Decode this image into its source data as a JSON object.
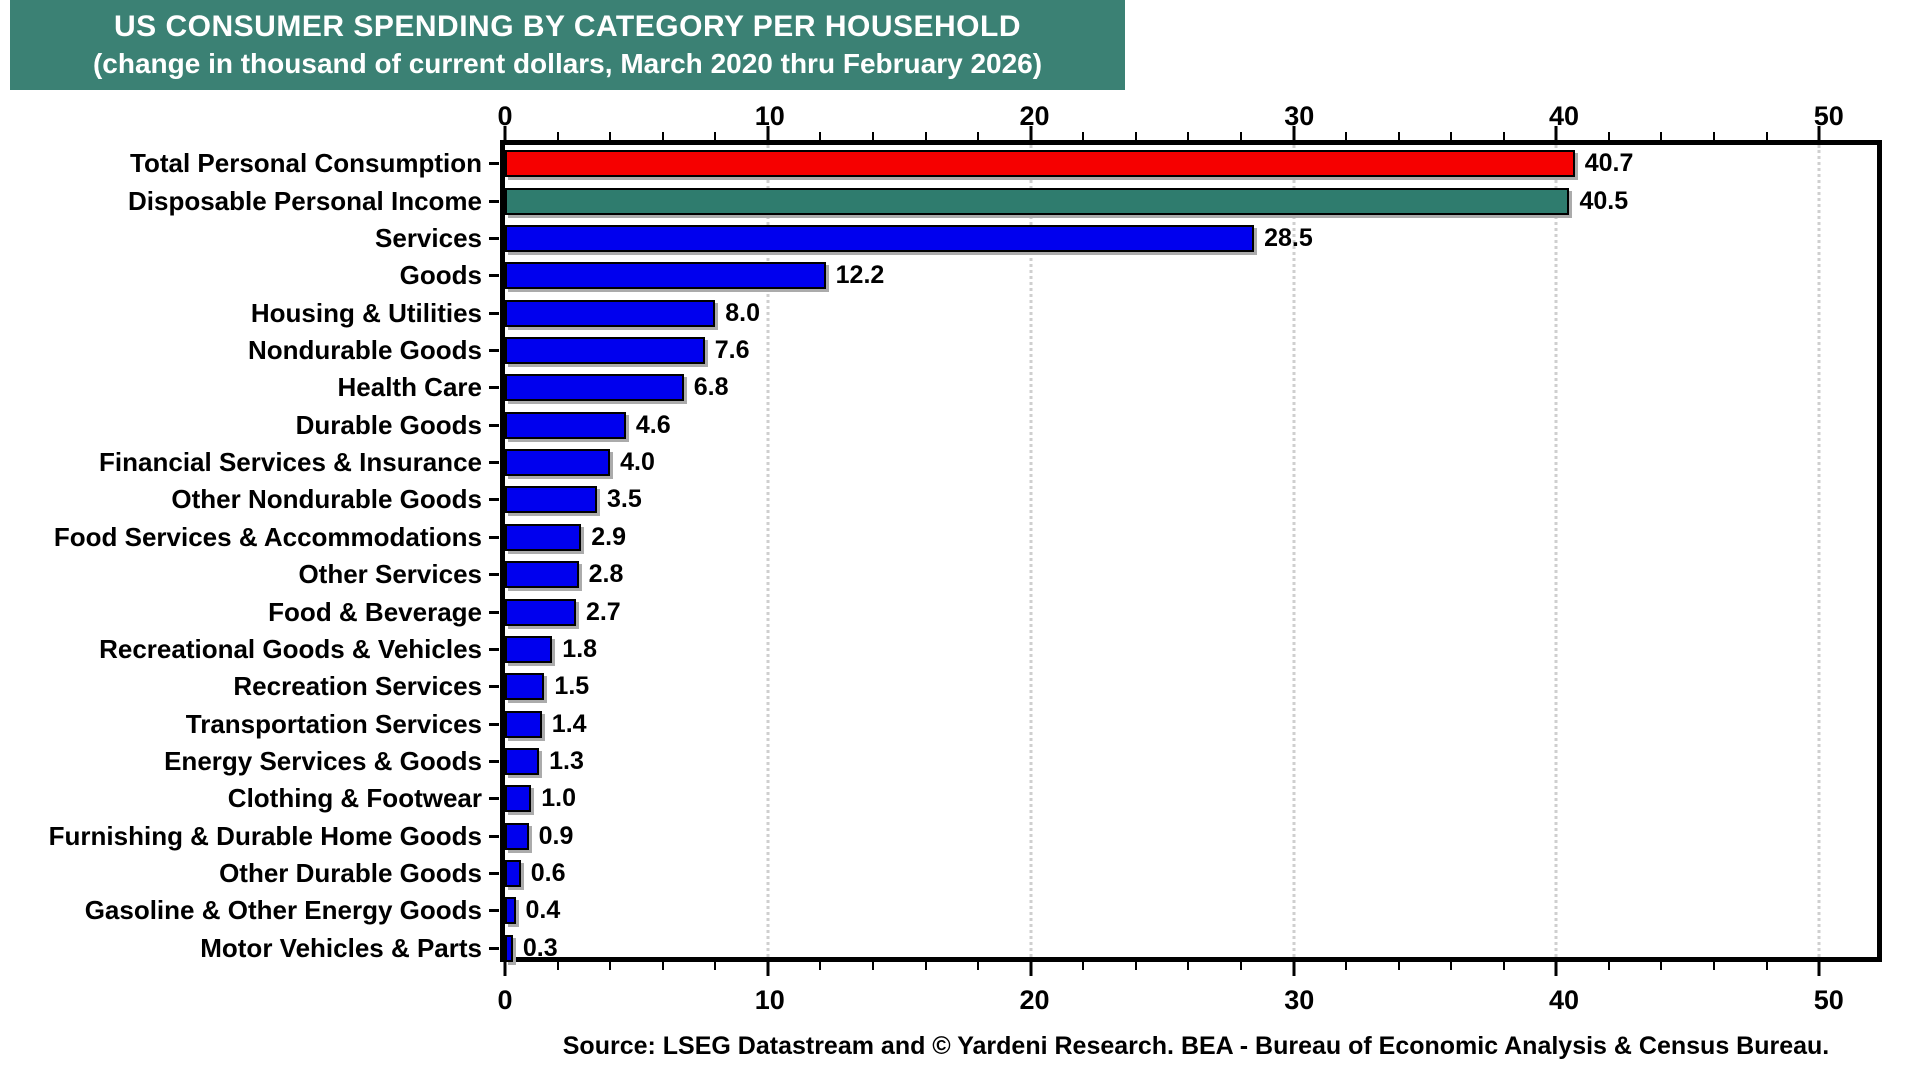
{
  "title": {
    "line1": "US CONSUMER SPENDING BY CATEGORY PER HOUSEHOLD",
    "line2": "(change in thousand of current dollars, March 2020 thru February 2026)"
  },
  "source_note": "Source: LSEG Datastream and © Yardeni Research. BEA - Bureau of Economic Analysis & Census Bureau.",
  "colors": {
    "title_bg": "#3B8174",
    "bar_red": "#F60000",
    "bar_teal": "#2F7C6E",
    "bar_blue": "#0000EE",
    "gridline": "#cfcfcf",
    "frame": "#000000",
    "title_text": "#ffffff"
  },
  "chart_data": {
    "type": "bar",
    "orientation": "horizontal",
    "title": "US CONSUMER SPENDING BY CATEGORY PER HOUSEHOLD",
    "subtitle": "(change in thousand of current dollars, March 2020 thru February 2026)",
    "xlabel": "",
    "ylabel": "",
    "categories": [
      "Total Personal Consumption",
      "Disposable Personal Income",
      "Services",
      "Goods",
      "Housing & Utilities",
      "Nondurable Goods",
      "Health Care",
      "Durable Goods",
      "Financial Services & Insurance",
      "Other Nondurable Goods",
      "Food Services & Accommodations",
      "Other Services",
      "Food & Beverage",
      "Recreational Goods & Vehicles",
      "Recreation Services",
      "Transportation Services",
      "Energy Services & Goods",
      "Clothing & Footwear",
      "Furnishing & Durable Home Goods",
      "Other Durable Goods",
      "Gasoline & Other Energy Goods",
      "Motor Vehicles & Parts"
    ],
    "values": [
      40.7,
      40.5,
      28.5,
      12.2,
      8.0,
      7.6,
      6.8,
      4.6,
      4.0,
      3.5,
      2.9,
      2.8,
      2.7,
      1.8,
      1.5,
      1.4,
      1.3,
      1.0,
      0.9,
      0.6,
      0.4,
      0.3
    ],
    "bar_colors": [
      "#F60000",
      "#2F7C6E",
      "#0000EE",
      "#0000EE",
      "#0000EE",
      "#0000EE",
      "#0000EE",
      "#0000EE",
      "#0000EE",
      "#0000EE",
      "#0000EE",
      "#0000EE",
      "#0000EE",
      "#0000EE",
      "#0000EE",
      "#0000EE",
      "#0000EE",
      "#0000EE",
      "#0000EE",
      "#0000EE",
      "#0000EE",
      "#0000EE"
    ],
    "value_labels": [
      "40.7",
      "40.5",
      "28.5",
      "12.2",
      "8.0",
      "7.6",
      "6.8",
      "4.6",
      "4.0",
      "3.5",
      "2.9",
      "2.8",
      "2.7",
      "1.8",
      "1.5",
      "1.4",
      "1.3",
      "1.0",
      "0.9",
      "0.6",
      "0.4",
      "0.3"
    ],
    "xlim": [
      0,
      52.2
    ],
    "xticks": [
      0,
      10,
      20,
      30,
      40,
      50
    ],
    "xtick_labels": [
      "0",
      "10",
      "20",
      "30",
      "40",
      "50"
    ],
    "minor_tick_step": 2,
    "grid": "vertical dotted gridlines at major ticks, drawn behind bars",
    "axis_labels_position": "top and bottom",
    "legend": "none"
  }
}
